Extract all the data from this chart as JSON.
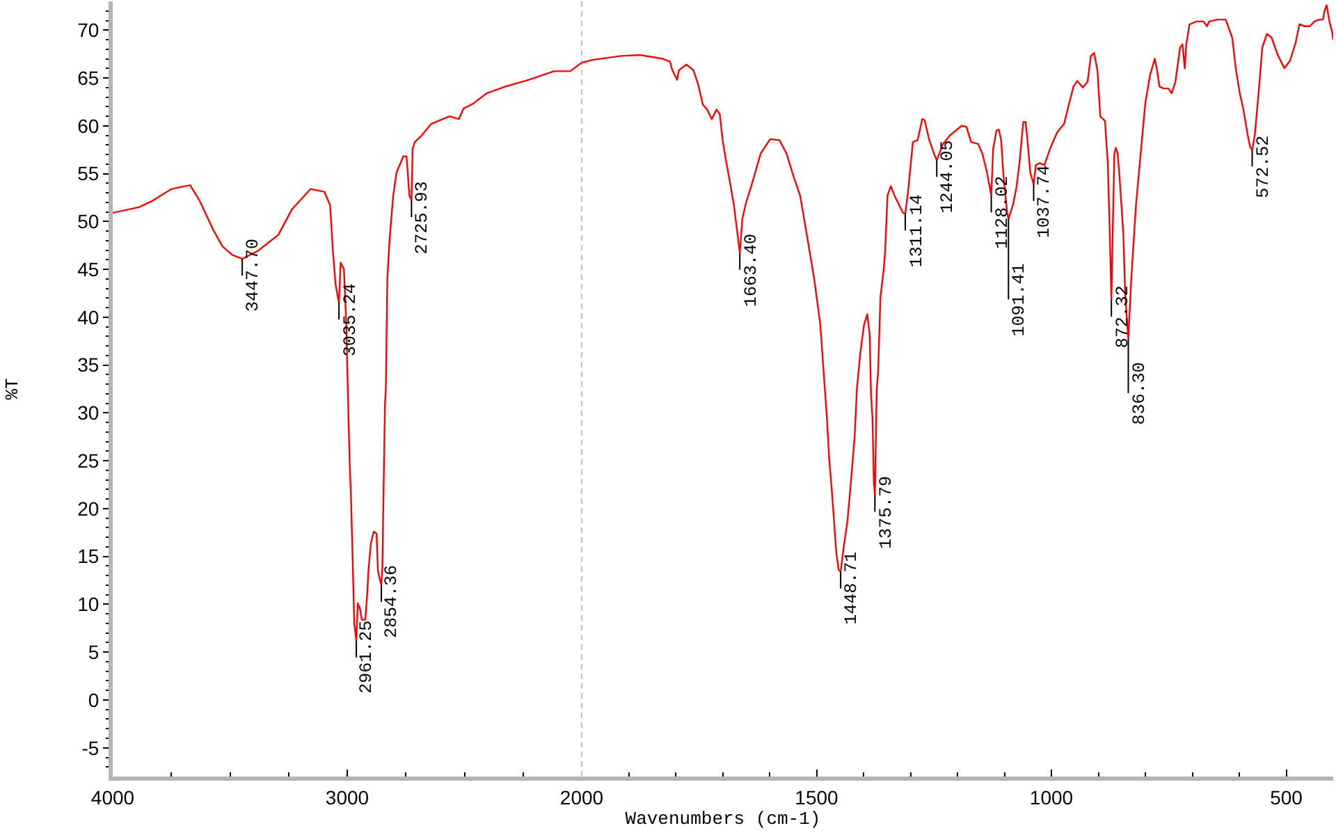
{
  "chart_data": [
    {
      "type": "line",
      "ylabel": "%T",
      "x": [
        4000,
        3887,
        3828,
        3749,
        3670,
        3630,
        3571,
        3532,
        3490,
        3447.7,
        3383,
        3294,
        3235,
        3156,
        3097,
        3073,
        3061,
        3050,
        3043,
        3035.24,
        3028,
        3014,
        3004,
        2996,
        2990,
        2984,
        2978,
        2970,
        2961.25,
        2955,
        2946,
        2938,
        2923,
        2915,
        2909,
        2899,
        2887,
        2875,
        2869,
        2860,
        2854.36,
        2850,
        2847,
        2843,
        2839,
        2835,
        2829,
        2820,
        2804,
        2790,
        2761,
        2747,
        2735,
        2725.93,
        2721,
        2712,
        2682,
        2642,
        2593,
        2563,
        2524,
        2504,
        2464,
        2405,
        2326,
        2227,
        2119,
        2049,
        2000
      ],
      "series": [
        {
          "color": "#ff0000",
          "values": [
            50.9,
            51.5,
            52.2,
            53.4,
            53.8,
            52.2,
            49.1,
            47.4,
            46.5,
            46.1,
            46.9,
            48.6,
            51.3,
            53.4,
            53.1,
            51.7,
            46.9,
            43.5,
            42.5,
            41.5,
            45.7,
            45.0,
            39.2,
            30.9,
            25.1,
            21.2,
            15.7,
            8.0,
            6.2,
            10.1,
            9.6,
            8.4,
            8.4,
            11.0,
            13.7,
            16.4,
            17.6,
            17.4,
            13.5,
            12.5,
            12.0,
            14.0,
            18.8,
            25.1,
            30.9,
            32.8,
            44.0,
            47.9,
            52.7,
            55.1,
            56.8,
            56.8,
            52.7,
            52.2,
            57.6,
            58.3,
            59.0,
            60.2,
            60.7,
            61.0,
            60.7,
            61.8,
            62.3,
            63.4,
            64.1,
            64.8,
            65.7,
            65.7,
            66.6
          ]
        }
      ],
      "xlim": [
        4000,
        2000
      ],
      "xticks": [
        4000,
        {
          "value": 3750,
          "label": null
        },
        {
          "value": 3500,
          "label": null
        },
        {
          "value": 3250,
          "label": null
        },
        3000,
        {
          "value": 2750,
          "label": null
        },
        {
          "value": 2500,
          "label": null
        },
        {
          "value": 2250,
          "label": null
        },
        2000
      ],
      "ylim": [
        -8,
        73
      ],
      "yticks": [
        {
          "value": -7,
          "label": null
        },
        {
          "value": -6,
          "label": null
        },
        -5,
        {
          "value": -4,
          "label": null
        },
        {
          "value": -3,
          "label": null
        },
        {
          "value": -2,
          "label": null
        },
        {
          "value": -1,
          "label": null
        },
        0,
        {
          "value": 1,
          "label": null
        },
        {
          "value": 2,
          "label": null
        },
        {
          "value": 3,
          "label": null
        },
        {
          "value": 4,
          "label": null
        },
        5,
        {
          "value": 6,
          "label": null
        },
        {
          "value": 7,
          "label": null
        },
        {
          "value": 8,
          "label": null
        },
        {
          "value": 9,
          "label": null
        },
        10,
        {
          "value": 11,
          "label": null
        },
        {
          "value": 12,
          "label": null
        },
        {
          "value": 13,
          "label": null
        },
        {
          "value": 14,
          "label": null
        },
        15,
        {
          "value": 16,
          "label": null
        },
        {
          "value": 17,
          "label": null
        },
        {
          "value": 18,
          "label": null
        },
        {
          "value": 19,
          "label": null
        },
        20,
        {
          "value": 21,
          "label": null
        },
        {
          "value": 22,
          "label": null
        },
        {
          "value": 23,
          "label": null
        },
        {
          "value": 24,
          "label": null
        },
        25,
        {
          "value": 26,
          "label": null
        },
        {
          "value": 27,
          "label": null
        },
        {
          "value": 28,
          "label": null
        },
        {
          "value": 29,
          "label": null
        },
        30,
        {
          "value": 31,
          "label": null
        },
        {
          "value": 32,
          "label": null
        },
        {
          "value": 33,
          "label": null
        },
        {
          "value": 34,
          "label": null
        },
        35,
        {
          "value": 36,
          "label": null
        },
        {
          "value": 37,
          "label": null
        },
        {
          "value": 38,
          "label": null
        },
        {
          "value": 39,
          "label": null
        },
        40,
        {
          "value": 41,
          "label": null
        },
        {
          "value": 42,
          "label": null
        },
        {
          "value": 43,
          "label": null
        },
        {
          "value": 44,
          "label": null
        },
        45,
        {
          "value": 46,
          "label": null
        },
        {
          "value": 47,
          "label": null
        },
        {
          "value": 48,
          "label": null
        },
        {
          "value": 49,
          "label": null
        },
        50,
        {
          "value": 51,
          "label": null
        },
        {
          "value": 52,
          "label": null
        },
        {
          "value": 53,
          "label": null
        },
        {
          "value": 54,
          "label": null
        },
        55,
        {
          "value": 56,
          "label": null
        },
        {
          "value": 57,
          "label": null
        },
        {
          "value": 58,
          "label": null
        },
        {
          "value": 59,
          "label": null
        },
        60,
        {
          "value": 61,
          "label": null
        },
        {
          "value": 62,
          "label": null
        },
        {
          "value": 63,
          "label": null
        },
        {
          "value": 64,
          "label": null
        },
        65,
        {
          "value": 66,
          "label": null
        },
        {
          "value": 67,
          "label": null
        },
        {
          "value": 68,
          "label": null
        },
        {
          "value": 69,
          "label": null
        },
        70,
        {
          "value": 71,
          "label": null
        },
        {
          "value": 72,
          "label": null
        }
      ],
      "annotations": [
        {
          "text": "3447.70",
          "x": 3447.7,
          "y": 46.1
        },
        {
          "text": "3035.24",
          "x": 3035.24,
          "y": 41.5
        },
        {
          "text": "2961.25",
          "x": 2961.25,
          "y": 6.2
        },
        {
          "text": "2854.36",
          "x": 2854.36,
          "y": 12.0
        },
        {
          "text": "2725.93",
          "x": 2725.93,
          "y": 52.2
        }
      ],
      "ref_lines": [
        {
          "axis": "x",
          "value": 2000,
          "color": "#c0c0c0",
          "line_style": "dashed"
        }
      ]
    },
    {
      "type": "line",
      "xlabel": "Wavenumbers (cm-1)",
      "x": [
        2000,
        1975,
        1916,
        1876,
        1827,
        1812,
        1807,
        1797,
        1793,
        1777,
        1762,
        1752,
        1742,
        1733,
        1723,
        1713,
        1706,
        1700,
        1693,
        1683,
        1676,
        1663.4,
        1658,
        1650,
        1639,
        1619,
        1599,
        1579,
        1564,
        1549,
        1535,
        1520,
        1505,
        1492,
        1485,
        1478,
        1473,
        1468,
        1463,
        1458,
        1453,
        1448.71,
        1443,
        1434,
        1427,
        1419,
        1414,
        1407,
        1399,
        1392,
        1387,
        1384,
        1381,
        1378,
        1375.79,
        1372,
        1369,
        1364,
        1357,
        1354,
        1349,
        1342,
        1334,
        1322,
        1316,
        1311.14,
        1305,
        1295,
        1285,
        1275,
        1270,
        1260,
        1250,
        1244.05,
        1231,
        1216,
        1191,
        1181,
        1171,
        1156,
        1147,
        1137,
        1128.02,
        1124,
        1117,
        1112,
        1107,
        1102,
        1094,
        1091.41,
        1082,
        1074,
        1067,
        1060,
        1055,
        1051,
        1045,
        1037.74,
        1033,
        1025,
        1015,
        1003,
        988,
        973,
        963,
        953,
        945,
        933,
        923,
        916,
        909,
        902,
        896,
        886,
        880,
        876,
        872.32,
        869,
        866,
        863,
        859,
        855,
        847,
        843,
        836.3,
        830,
        820,
        810,
        800,
        790,
        780,
        775,
        770,
        761,
        751,
        744,
        736,
        726,
        721,
        716,
        713,
        706,
        691,
        676,
        669,
        664,
        646,
        629,
        615,
        607,
        599,
        592,
        582,
        577,
        572.52,
        567,
        559,
        551,
        541,
        531,
        519,
        504,
        492,
        480,
        472,
        460,
        450,
        440,
        430,
        422,
        418,
        414,
        408,
        402,
        400
      ],
      "series": [
        {
          "color": "#ff0000",
          "values": [
            66.6,
            66.9,
            67.3,
            67.4,
            67.0,
            66.7,
            65.8,
            64.8,
            65.8,
            66.4,
            65.8,
            64.3,
            62.2,
            61.7,
            60.7,
            61.7,
            61.2,
            58.5,
            56.4,
            53.7,
            51.7,
            46.7,
            50.3,
            52.0,
            53.7,
            57.1,
            58.6,
            58.5,
            57.1,
            54.7,
            52.7,
            48.4,
            44.0,
            39.2,
            34.3,
            29.5,
            25.1,
            22.2,
            18.8,
            15.4,
            13.6,
            13.4,
            15.7,
            18.8,
            22.7,
            27.5,
            32.6,
            36.2,
            39.2,
            40.3,
            38.2,
            31.9,
            29.5,
            22.7,
            21.4,
            32.4,
            34.3,
            42.1,
            45.0,
            46.9,
            52.7,
            53.7,
            52.7,
            51.5,
            50.9,
            50.8,
            53.2,
            58.3,
            58.5,
            60.7,
            60.6,
            58.5,
            57.1,
            56.4,
            58.1,
            59.0,
            60.0,
            59.9,
            58.3,
            58.1,
            57.1,
            55.1,
            52.7,
            57.6,
            59.5,
            59.6,
            58.5,
            54.7,
            50.8,
            50.3,
            51.7,
            53.7,
            56.6,
            60.4,
            60.4,
            58.5,
            55.1,
            53.9,
            55.9,
            56.1,
            55.9,
            57.6,
            59.3,
            60.2,
            62.2,
            64.1,
            64.7,
            64.0,
            64.6,
            67.3,
            67.6,
            65.8,
            61.0,
            60.5,
            56.1,
            49.3,
            41.8,
            50.0,
            57.1,
            57.7,
            57.1,
            54.7,
            48.8,
            42.5,
            37.7,
            44.0,
            51.7,
            57.1,
            62.4,
            65.3,
            67.0,
            65.8,
            64.1,
            63.9,
            63.9,
            63.4,
            64.6,
            68.2,
            68.5,
            66.0,
            68.5,
            70.6,
            70.9,
            70.9,
            70.4,
            70.9,
            71.1,
            71.1,
            69.2,
            65.8,
            63.4,
            61.9,
            59.0,
            57.8,
            57.5,
            59.0,
            63.4,
            68.2,
            69.6,
            69.2,
            67.5,
            66.0,
            66.8,
            68.7,
            70.6,
            70.4,
            70.4,
            70.9,
            71.1,
            71.1,
            72.1,
            72.6,
            70.9,
            69.7,
            69.0
          ]
        }
      ],
      "xlim": [
        2000,
        400
      ],
      "xticks": [
        {
          "value": 1900,
          "label": null
        },
        {
          "value": 1800,
          "label": null
        },
        {
          "value": 1700,
          "label": null
        },
        {
          "value": 1600,
          "label": null
        },
        1500,
        {
          "value": 1400,
          "label": null
        },
        {
          "value": 1300,
          "label": null
        },
        {
          "value": 1200,
          "label": null
        },
        {
          "value": 1100,
          "label": null
        },
        1000,
        {
          "value": 900,
          "label": null
        },
        {
          "value": 800,
          "label": null
        },
        {
          "value": 700,
          "label": null
        },
        {
          "value": 600,
          "label": null
        },
        500
      ],
      "ylim": [
        -8,
        73
      ],
      "tick_labels": "x",
      "annotations": [
        {
          "text": "1663.40",
          "x": 1663.4,
          "y": 46.7
        },
        {
          "text": "1448.71",
          "x": 1448.71,
          "y": 13.4
        },
        {
          "text": "1375.79",
          "x": 1375.79,
          "y": 21.4
        },
        {
          "text": "1311.14",
          "x": 1311.14,
          "y": 50.8
        },
        {
          "text": "1244.05",
          "x": 1244.05,
          "y": 56.4
        },
        {
          "text": "1128.02",
          "x": 1128.02,
          "y": 52.7
        },
        {
          "text": "1091.41",
          "x": 1091.41,
          "y": 50.3
        },
        {
          "text": "1037.74",
          "x": 1037.74,
          "y": 53.9
        },
        {
          "text": "872.32",
          "x": 872.32,
          "y": 41.8
        },
        {
          "text": "836.30",
          "x": 836.3,
          "y": 37.7
        },
        {
          "text": "572.52",
          "x": 572.52,
          "y": 57.5
        }
      ]
    }
  ]
}
